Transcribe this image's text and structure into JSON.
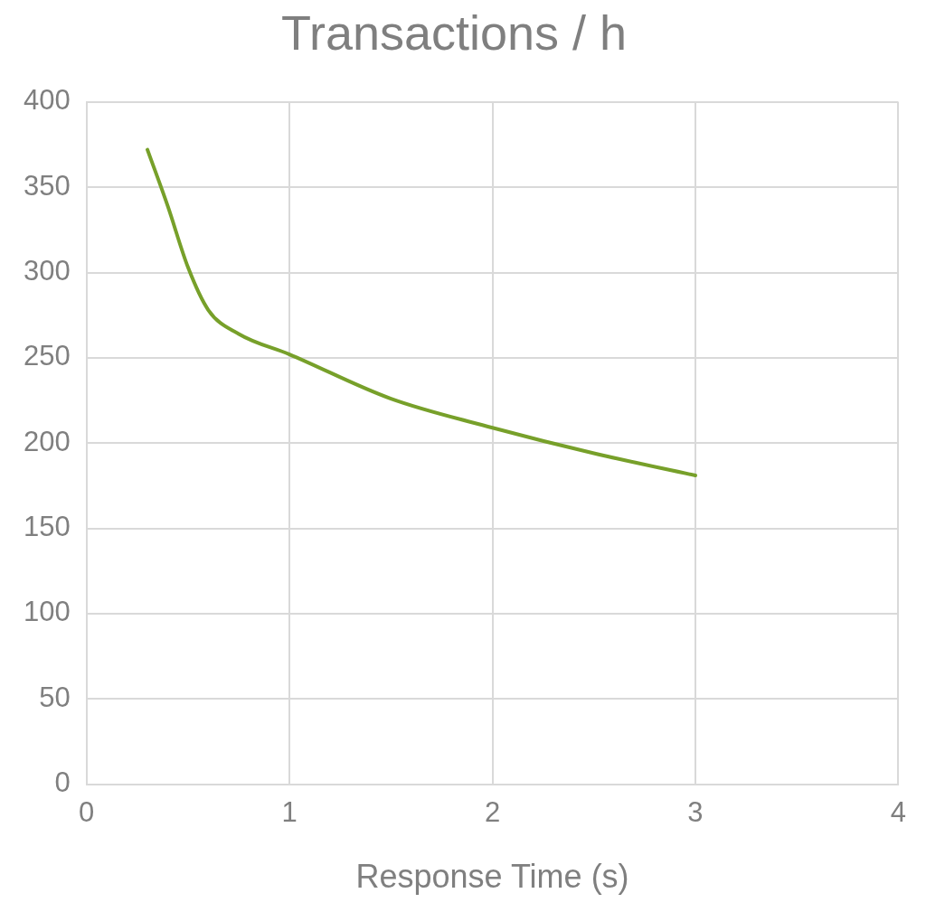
{
  "chart_data": {
    "type": "line",
    "title": "Transactions / h",
    "xlabel": "Response Time (s)",
    "x": [
      0.3,
      0.4,
      0.5,
      0.6,
      0.75,
      1,
      1.5,
      2,
      2.5,
      3
    ],
    "series": [
      {
        "color": "#77a02a",
        "values": [
          372,
          339,
          303,
          278,
          264,
          252,
          226,
          209,
          194,
          181
        ]
      }
    ],
    "xlim": [
      0,
      4
    ],
    "xticks": [
      0,
      1,
      2,
      3,
      4
    ],
    "ylim": [
      0,
      400
    ],
    "yticks": [
      0,
      50,
      100,
      150,
      200,
      250,
      300,
      350,
      400
    ],
    "grid": true,
    "legend": false,
    "marker": "none",
    "line_style": "solid"
  }
}
